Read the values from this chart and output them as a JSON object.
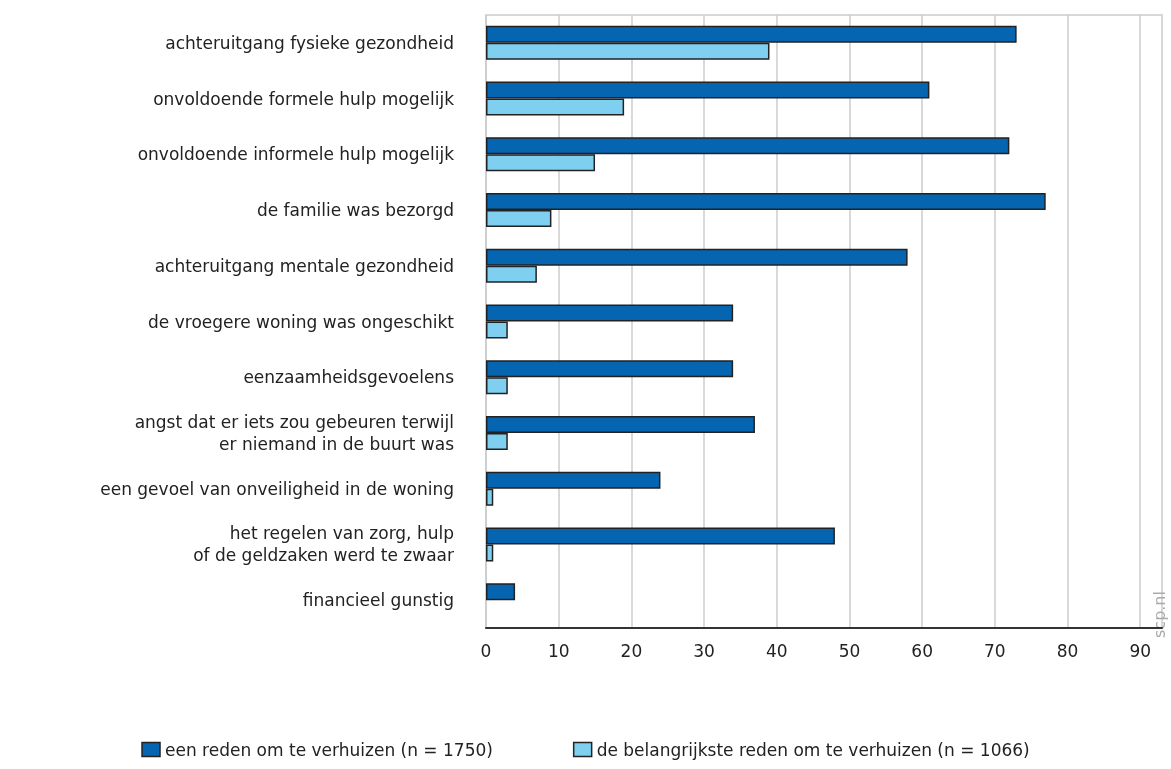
{
  "chart_data": {
    "type": "bar",
    "orientation": "horizontal",
    "categories": [
      "achteruitgang fysieke gezondheid",
      "onvoldoende formele hulp mogelijk",
      "onvoldoende informele hulp mogelijk",
      "de familie was bezorgd",
      "achteruitgang mentale gezondheid",
      "de vroegere woning was ongeschikt",
      "eenzaamheidsgevoelens",
      "angst dat er iets zou gebeuren terwijl\ner niemand in de buurt was",
      "een gevoel van onveiligheid in de woning",
      "het regelen van zorg, hulp\nof de geldzaken werd te zwaar",
      "financieel gunstig"
    ],
    "series": [
      {
        "name": "een reden om te verhuizen (n = 1750)",
        "color": "#0565b0",
        "values": [
          73,
          61,
          72,
          77,
          58,
          34,
          34,
          37,
          24,
          48,
          4
        ]
      },
      {
        "name": "de belangrijkste reden om te verhuizen (n = 1066)",
        "color": "#7fcff0",
        "values": [
          39,
          19,
          15,
          9,
          7,
          3,
          3,
          3,
          1,
          1,
          null
        ]
      }
    ],
    "xlim": [
      0,
      93
    ],
    "xticks": [
      0,
      10,
      20,
      30,
      40,
      50,
      60,
      70,
      80,
      90
    ],
    "grid": "x",
    "legend": "bottom",
    "annotations": [
      "scp.nl"
    ]
  }
}
